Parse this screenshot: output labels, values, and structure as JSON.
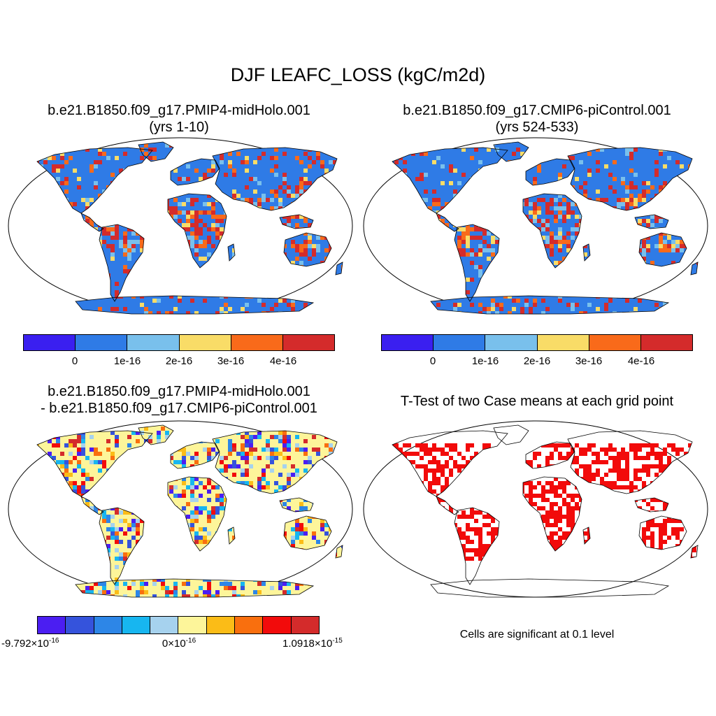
{
  "main_title": "DJF LEAFC_LOSS (kgC/m2d)",
  "panels": {
    "top_left": {
      "title_line1": "b.e21.B1850.f09_g17.PMIP4-midHolo.001",
      "title_line2": "(yrs 1-10)"
    },
    "top_right": {
      "title_line1": "b.e21.B1850.f09_g17.CMIP6-piControl.001",
      "title_line2": "(yrs 524-533)"
    },
    "bottom_left": {
      "title_line1": "b.e21.B1850.f09_g17.PMIP4-midHolo.001",
      "title_line2": "- b.e21.B1850.f09_g17.CMIP6-piControl.001"
    },
    "bottom_right": {
      "title": "T-Test of two Case means at each grid point",
      "note": "Cells are significant at 0.1 level"
    }
  },
  "colorbar_abs": {
    "colors": [
      "#3a1ff0",
      "#2f7be6",
      "#79c0ec",
      "#f9dc67",
      "#f96a1a",
      "#d42b2b"
    ],
    "ticks": [
      "0",
      "1e-16",
      "2e-16",
      "3e-16",
      "4e-16"
    ]
  },
  "colorbar_diff": {
    "colors": [
      "#4b1ef2",
      "#3553dc",
      "#2d86e7",
      "#17b6f0",
      "#a6d2ee",
      "#fdf59a",
      "#fbbc17",
      "#f96f0e",
      "#f20b0b",
      "#d42b2b"
    ],
    "tick_min_mantissa": "-9.792",
    "tick_mid_mantissa": "0",
    "tick_max_mantissa": "1.0918",
    "times": "×10",
    "exp_min": "-16",
    "exp_mid": "-16",
    "exp_max": "-15"
  },
  "map_colors": {
    "ocean": "#ffffff",
    "land_abs": "#2f7be6",
    "land_diff": "#fdf59a",
    "signif": "#f20b0b",
    "outline": "#000000"
  }
}
